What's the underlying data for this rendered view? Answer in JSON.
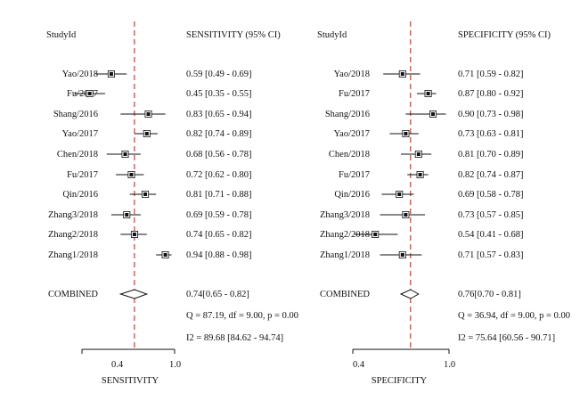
{
  "chart_data": [
    {
      "type": "forest",
      "id_header": "StudyId",
      "value_header": "SENSITIVITY (95% CI)",
      "xlabel": "SENSITIVITY",
      "xlim": [
        0.4,
        1.0
      ],
      "xticks": [
        "0.4",
        "1.0"
      ],
      "reference_line": 0.74,
      "studies": [
        {
          "name": "Yao/2018",
          "estimate": 0.59,
          "lower": 0.49,
          "upper": 0.69,
          "ci_text": "0.59 [0.49 - 0.69]"
        },
        {
          "name": "Fu/2017",
          "estimate": 0.45,
          "lower": 0.35,
          "upper": 0.55,
          "ci_text": "0.45 [0.35 - 0.55]"
        },
        {
          "name": "Shang/2016",
          "estimate": 0.83,
          "lower": 0.65,
          "upper": 0.94,
          "ci_text": "0.83 [0.65 - 0.94]"
        },
        {
          "name": "Yao/2017",
          "estimate": 0.82,
          "lower": 0.74,
          "upper": 0.89,
          "ci_text": "0.82 [0.74 - 0.89]"
        },
        {
          "name": "Chen/2018",
          "estimate": 0.68,
          "lower": 0.56,
          "upper": 0.78,
          "ci_text": "0.68 [0.56 - 0.78]"
        },
        {
          "name": "Fu/2017",
          "estimate": 0.72,
          "lower": 0.62,
          "upper": 0.8,
          "ci_text": "0.72 [0.62 - 0.80]"
        },
        {
          "name": "Qin/2016",
          "estimate": 0.81,
          "lower": 0.71,
          "upper": 0.88,
          "ci_text": "0.81 [0.71 - 0.88]"
        },
        {
          "name": "Zhang3/2018",
          "estimate": 0.69,
          "lower": 0.59,
          "upper": 0.78,
          "ci_text": "0.69 [0.59 - 0.78]"
        },
        {
          "name": "Zhang2/2018",
          "estimate": 0.74,
          "lower": 0.65,
          "upper": 0.82,
          "ci_text": "0.74 [0.65 - 0.82]"
        },
        {
          "name": "Zhang1/2018",
          "estimate": 0.94,
          "lower": 0.88,
          "upper": 0.98,
          "ci_text": "0.94 [0.88 - 0.98]"
        }
      ],
      "combined": {
        "name": "COMBINED",
        "estimate": 0.74,
        "lower": 0.65,
        "upper": 0.82,
        "ci_text": "0.74[0.65 - 0.82]"
      },
      "stats": [
        "Q = 87.19, df = 9.00, p = 0.00",
        "I2 = 89.68 [84.62 - 94.74]"
      ]
    },
    {
      "type": "forest",
      "id_header": "StudyId",
      "value_header": "SPECIFICITY (95% CI)",
      "xlabel": "SPECIFICITY",
      "xlim": [
        0.4,
        1.0
      ],
      "xticks": [
        "0.4",
        "1.0"
      ],
      "reference_line": 0.76,
      "studies": [
        {
          "name": "Yao/2018",
          "estimate": 0.71,
          "lower": 0.59,
          "upper": 0.82,
          "ci_text": "0.71 [0.59 - 0.82]"
        },
        {
          "name": "Fu/2017",
          "estimate": 0.87,
          "lower": 0.8,
          "upper": 0.92,
          "ci_text": "0.87 [0.80 - 0.92]"
        },
        {
          "name": "Shang/2016",
          "estimate": 0.9,
          "lower": 0.73,
          "upper": 0.98,
          "ci_text": "0.90 [0.73 - 0.98]"
        },
        {
          "name": "Yao/2017",
          "estimate": 0.73,
          "lower": 0.63,
          "upper": 0.81,
          "ci_text": "0.73 [0.63 - 0.81]"
        },
        {
          "name": "Chen/2018",
          "estimate": 0.81,
          "lower": 0.7,
          "upper": 0.89,
          "ci_text": "0.81 [0.70 - 0.89]"
        },
        {
          "name": "Fu/2017",
          "estimate": 0.82,
          "lower": 0.74,
          "upper": 0.87,
          "ci_text": "0.82 [0.74 - 0.87]"
        },
        {
          "name": "Qin/2016",
          "estimate": 0.69,
          "lower": 0.58,
          "upper": 0.78,
          "ci_text": "0.69 [0.58 - 0.78]"
        },
        {
          "name": "Zhang3/2018",
          "estimate": 0.73,
          "lower": 0.57,
          "upper": 0.85,
          "ci_text": "0.73 [0.57 - 0.85]"
        },
        {
          "name": "Zhang2/2018",
          "estimate": 0.54,
          "lower": 0.41,
          "upper": 0.68,
          "ci_text": "0.54 [0.41 - 0.68]"
        },
        {
          "name": "Zhang1/2018",
          "estimate": 0.71,
          "lower": 0.57,
          "upper": 0.83,
          "ci_text": "0.71 [0.57 - 0.83]"
        }
      ],
      "combined": {
        "name": "COMBINED",
        "estimate": 0.76,
        "lower": 0.7,
        "upper": 0.81,
        "ci_text": "0.76[0.70 - 0.81]"
      },
      "stats": [
        "Q = 36.94, df = 9.00, p = 0.00",
        "I2 = 75.64 [60.56 - 90.71]"
      ]
    }
  ],
  "colors": {
    "reference_line": "#d9342b",
    "marker": "#111111",
    "axis": "#111111"
  }
}
